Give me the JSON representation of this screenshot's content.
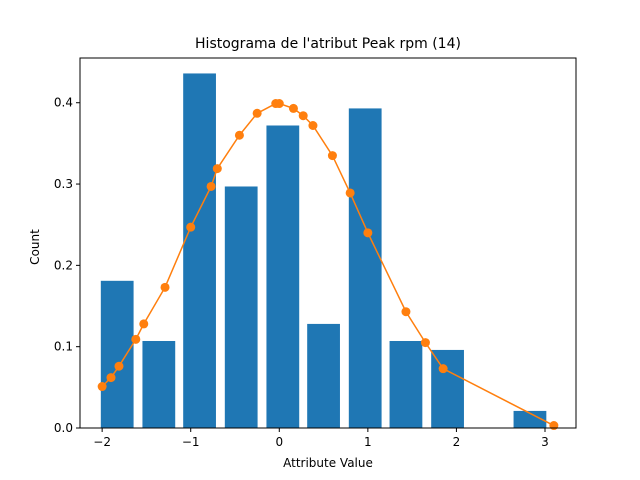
{
  "chart_data": {
    "type": "bar",
    "title": "Histograma de l'atribut Peak rpm (14)",
    "xlabel": "Attribute Value",
    "ylabel": "Count",
    "xlim": [
      -2.25,
      3.35
    ],
    "ylim": [
      0.0,
      0.455
    ],
    "grid": false,
    "bar_color": "#1f77b4",
    "line_color": "#ff7f0e",
    "bars": [
      {
        "x": -1.83,
        "width": 0.37,
        "value": 0.181
      },
      {
        "x": -1.36,
        "width": 0.37,
        "value": 0.107
      },
      {
        "x": -0.9,
        "width": 0.37,
        "value": 0.436
      },
      {
        "x": -0.43,
        "width": 0.37,
        "value": 0.297
      },
      {
        "x": 0.04,
        "width": 0.37,
        "value": 0.372
      },
      {
        "x": 0.5,
        "width": 0.37,
        "value": 0.128
      },
      {
        "x": 0.97,
        "width": 0.37,
        "value": 0.393
      },
      {
        "x": 1.43,
        "width": 0.37,
        "value": 0.107
      },
      {
        "x": 1.9,
        "width": 0.37,
        "value": 0.096
      },
      {
        "x": 2.83,
        "width": 0.37,
        "value": 0.021
      }
    ],
    "series": [
      {
        "type": "line",
        "x": [
          -2.0,
          -1.9,
          -1.81,
          -1.62,
          -1.53,
          -1.29,
          -1.0,
          -0.77,
          -0.7,
          -0.45,
          -0.25,
          -0.04,
          0.0,
          0.16,
          0.27,
          0.38,
          0.6,
          0.8,
          1.0,
          1.43,
          1.65,
          1.85,
          3.1
        ],
        "y": [
          0.051,
          0.062,
          0.076,
          0.109,
          0.128,
          0.173,
          0.247,
          0.297,
          0.319,
          0.36,
          0.387,
          0.399,
          0.399,
          0.393,
          0.384,
          0.372,
          0.335,
          0.289,
          0.24,
          0.143,
          0.105,
          0.073,
          0.003
        ]
      }
    ],
    "xticks": [
      {
        "value": -2,
        "label": "−2"
      },
      {
        "value": -1,
        "label": "−1"
      },
      {
        "value": 0,
        "label": "0"
      },
      {
        "value": 1,
        "label": "1"
      },
      {
        "value": 2,
        "label": "2"
      },
      {
        "value": 3,
        "label": "3"
      }
    ],
    "yticks": [
      {
        "value": 0.0,
        "label": "0.0"
      },
      {
        "value": 0.1,
        "label": "0.1"
      },
      {
        "value": 0.2,
        "label": "0.2"
      },
      {
        "value": 0.3,
        "label": "0.3"
      },
      {
        "value": 0.4,
        "label": "0.4"
      }
    ]
  }
}
